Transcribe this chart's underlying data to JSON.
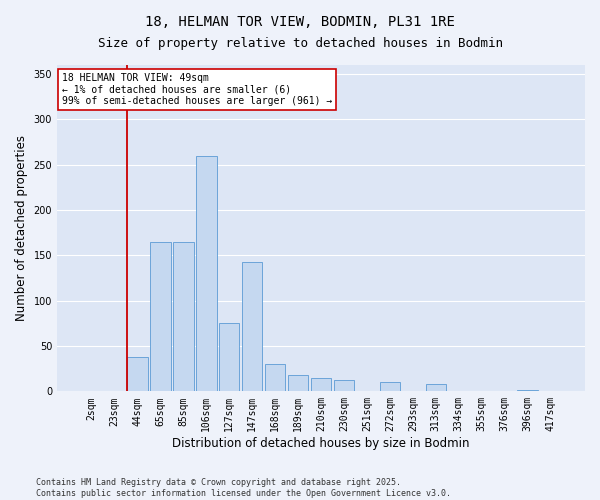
{
  "title1": "18, HELMAN TOR VIEW, BODMIN, PL31 1RE",
  "title2": "Size of property relative to detached houses in Bodmin",
  "xlabel": "Distribution of detached houses by size in Bodmin",
  "ylabel": "Number of detached properties",
  "categories": [
    "2sqm",
    "23sqm",
    "44sqm",
    "65sqm",
    "85sqm",
    "106sqm",
    "127sqm",
    "147sqm",
    "168sqm",
    "189sqm",
    "210sqm",
    "230sqm",
    "251sqm",
    "272sqm",
    "293sqm",
    "313sqm",
    "334sqm",
    "355sqm",
    "376sqm",
    "396sqm",
    "417sqm"
  ],
  "values": [
    0,
    0,
    38,
    165,
    165,
    260,
    75,
    143,
    30,
    18,
    15,
    12,
    0,
    10,
    0,
    8,
    0,
    0,
    0,
    2,
    0
  ],
  "bar_color": "#c5d8f0",
  "bar_edge_color": "#5b9bd5",
  "vline_index": 2,
  "vline_color": "#cc0000",
  "ylim": [
    0,
    360
  ],
  "yticks": [
    0,
    50,
    100,
    150,
    200,
    250,
    300,
    350
  ],
  "annotation_text": "18 HELMAN TOR VIEW: 49sqm\n← 1% of detached houses are smaller (6)\n99% of semi-detached houses are larger (961) →",
  "footer_text": "Contains HM Land Registry data © Crown copyright and database right 2025.\nContains public sector information licensed under the Open Government Licence v3.0.",
  "bg_color": "#eef2fa",
  "plot_bg_color": "#dde6f5",
  "grid_color": "#ffffff",
  "title_fontsize": 10,
  "subtitle_fontsize": 9,
  "tick_fontsize": 7,
  "label_fontsize": 8.5,
  "footer_fontsize": 6,
  "annot_fontsize": 7
}
